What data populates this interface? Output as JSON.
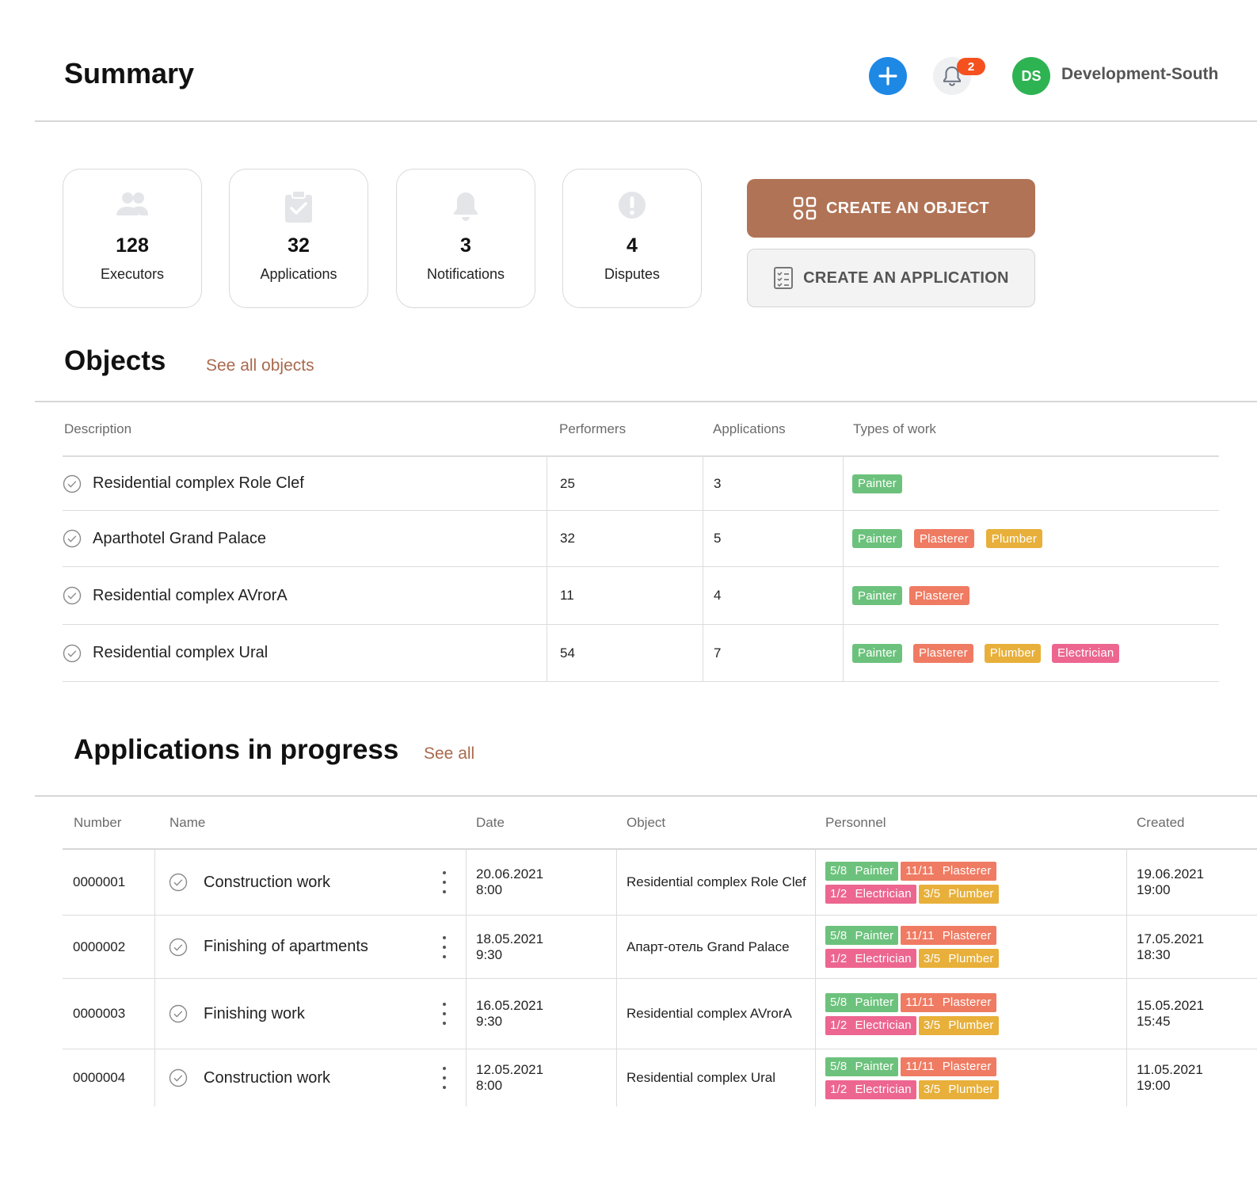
{
  "header": {
    "title": "Summary",
    "notification_count": "2",
    "avatar_initials": "DS",
    "org_name": "Development-South"
  },
  "stats": [
    {
      "value": "128",
      "label": "Executors",
      "icon": "people-icon"
    },
    {
      "value": "32",
      "label": "Applications",
      "icon": "clipboard-check-icon"
    },
    {
      "value": "3",
      "label": "Notifications",
      "icon": "bell-icon"
    },
    {
      "value": "4",
      "label": "Disputes",
      "icon": "alert-icon"
    }
  ],
  "actions": {
    "create_object": "CREATE AN OBJECT",
    "create_application": "CREATE AN APPLICATION"
  },
  "objects": {
    "title": "Objects",
    "see_all": "See all objects",
    "columns": {
      "description": "Description",
      "performers": "Performers",
      "applications": "Applications",
      "types": "Types of work"
    },
    "rows": [
      {
        "description": "Residential complex Role Clef",
        "performers": "25",
        "applications": "3",
        "types": [
          "Painter"
        ]
      },
      {
        "description": "Aparthotel Grand Palace",
        "performers": "32",
        "applications": "5",
        "types": [
          "Painter",
          "Plasterer",
          "Plumber"
        ]
      },
      {
        "description": "Residential complex AVrorA",
        "performers": "11",
        "applications": "4",
        "types": [
          "Painter",
          "Plasterer"
        ]
      },
      {
        "description": "Residential complex Ural",
        "performers": "54",
        "applications": "7",
        "types": [
          "Painter",
          "Plasterer",
          "Plumber",
          "Electrician"
        ]
      }
    ]
  },
  "applications": {
    "title": "Applications in progress",
    "see_all": "See all",
    "columns": {
      "number": "Number",
      "name": "Name",
      "date": "Date",
      "object": "Object",
      "personnel": "Personnel",
      "created": "Created"
    },
    "rows": [
      {
        "number": "0000001",
        "name": "Construction work",
        "date": "20.06.2021",
        "time": "8:00",
        "object": "Residential complex Role Clef",
        "personnel": [
          [
            {
              "count": "5/8",
              "role": "Painter"
            },
            {
              "count": "11/11",
              "role": "Plasterer"
            }
          ],
          [
            {
              "count": "1/2",
              "role": "Electrician"
            },
            {
              "count": "3/5",
              "role": "Plumber"
            }
          ]
        ],
        "created_date": "19.06.2021",
        "created_time": "19:00"
      },
      {
        "number": "0000002",
        "name": "Finishing of apartments",
        "date": "18.05.2021",
        "time": "9:30",
        "object": "Апарт-отель Grand Palace",
        "personnel": [
          [
            {
              "count": "5/8",
              "role": "Painter"
            },
            {
              "count": "11/11",
              "role": "Plasterer"
            }
          ],
          [
            {
              "count": "1/2",
              "role": "Electrician"
            },
            {
              "count": "3/5",
              "role": "Plumber"
            }
          ]
        ],
        "created_date": "17.05.2021",
        "created_time": "18:30"
      },
      {
        "number": "0000003",
        "name": "Finishing work",
        "date": "16.05.2021",
        "time": "9:30",
        "object": "Residential complex AVrorA",
        "personnel": [
          [
            {
              "count": "5/8",
              "role": "Painter"
            },
            {
              "count": "11/11",
              "role": "Plasterer"
            }
          ],
          [
            {
              "count": "1/2",
              "role": "Electrician"
            },
            {
              "count": "3/5",
              "role": "Plumber"
            }
          ]
        ],
        "created_date": "15.05.2021",
        "created_time": "15:45"
      },
      {
        "number": "0000004",
        "name": "Construction work",
        "date": "12.05.2021",
        "time": "8:00",
        "object": "Residential complex Ural",
        "personnel": [
          [
            {
              "count": "5/8",
              "role": "Painter"
            },
            {
              "count": "11/11",
              "role": "Plasterer"
            }
          ],
          [
            {
              "count": "1/2",
              "role": "Electrician"
            },
            {
              "count": "3/5",
              "role": "Plumber"
            }
          ]
        ],
        "created_date": "11.05.2021",
        "created_time": "19:00"
      }
    ]
  },
  "colors": {
    "accent": "#b07356",
    "link": "#a9694c",
    "add_button": "#1e88e5",
    "avatar": "#2eb352",
    "badge": "#f4511e",
    "painter": "#6cc27c",
    "plasterer": "#ef7b63",
    "plumber": "#e8b03a",
    "electrician": "#ec6690"
  }
}
